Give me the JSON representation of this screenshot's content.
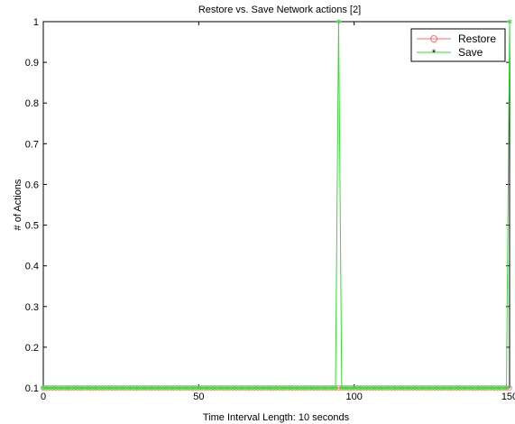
{
  "chart_data": {
    "type": "line",
    "title": "Restore vs. Save Network actions [2]",
    "xlabel": "Time Interval Length: 10 seconds",
    "ylabel": "# of Actions",
    "xlim": [
      0,
      150
    ],
    "ylim": [
      0.1,
      1
    ],
    "xticks": [
      0,
      50,
      100,
      150
    ],
    "xtick_labels": [
      "0",
      "50",
      "100",
      "150"
    ],
    "yticks": [
      0.1,
      0.2,
      0.3,
      0.4,
      0.5,
      0.6,
      0.7,
      0.8,
      0.9,
      1
    ],
    "ytick_labels": [
      "0.1",
      "0.2",
      "0.3",
      "0.4",
      "0.5",
      "0.6",
      "0.7",
      "0.8",
      "0.9",
      "1"
    ],
    "grid": false,
    "legend_position": "top-right",
    "x_start": 0,
    "x_end": 150,
    "series": [
      {
        "name": "Restore",
        "color": "#ff6b6b",
        "marker": "circle",
        "baseline": 0,
        "spikes": []
      },
      {
        "name": "Save",
        "color": "#33dd33",
        "marker": "star",
        "baseline": 0,
        "spikes": [
          [
            95,
            1
          ],
          [
            150,
            1
          ]
        ]
      }
    ]
  }
}
